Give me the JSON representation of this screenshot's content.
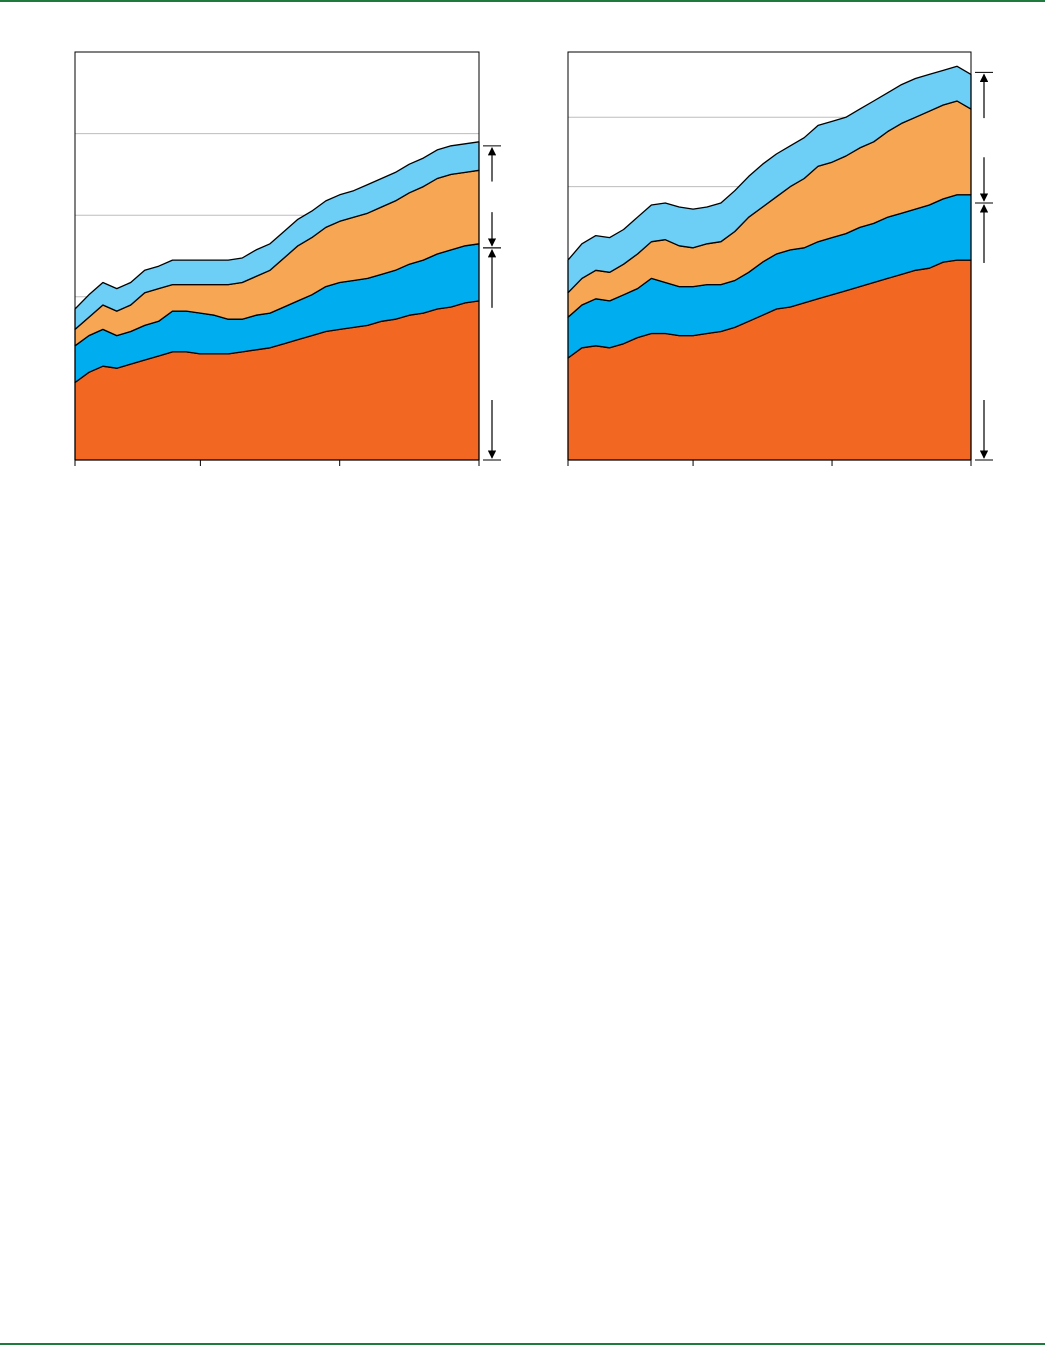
{
  "colors": {
    "rule": "#1f7a3e",
    "frame": "#000000",
    "gridline": "#bdbdbd",
    "layer_1": "#f26722",
    "layer_2": "#00aeef",
    "layer_3": "#f7a654",
    "layer_4": "#6dcff6"
  },
  "chart_data": [
    {
      "type": "area",
      "stacked": true,
      "title": "",
      "xlabel": "",
      "ylabel": "",
      "x": [
        0,
        1,
        2,
        3,
        4,
        5,
        6,
        7,
        8,
        9,
        10,
        11,
        12,
        13,
        14,
        15,
        16,
        17,
        18,
        19,
        20,
        21,
        22,
        23,
        24,
        25,
        26,
        27,
        28,
        29
      ],
      "xlim": [
        0,
        29
      ],
      "xticks": [
        0,
        9,
        19,
        29
      ],
      "ylim": [
        0,
        100
      ],
      "gridlines_y": [
        40,
        60,
        80
      ],
      "series": [
        {
          "color_key": "layer_1",
          "values": [
            19,
            21.5,
            23,
            22.5,
            23.5,
            24.5,
            25.5,
            26.5,
            26.5,
            26,
            26,
            26,
            26.5,
            27,
            27.5,
            28.5,
            29.5,
            30.5,
            31.5,
            32,
            32.5,
            33,
            34,
            34.5,
            35.5,
            36,
            37,
            37.5,
            38.5,
            39
          ]
        },
        {
          "color_key": "layer_2",
          "values": [
            9,
            9,
            9,
            8,
            8,
            8.5,
            8.5,
            10,
            10,
            10,
            9.5,
            8.5,
            8,
            8.5,
            8.5,
            9,
            9.5,
            10,
            11,
            11.5,
            11.5,
            11.5,
            11.5,
            12,
            12.5,
            13,
            13.5,
            14,
            14,
            14
          ]
        },
        {
          "color_key": "layer_3",
          "values": [
            4,
            4.5,
            6,
            6,
            6.5,
            8,
            8,
            6.5,
            6.5,
            7,
            7.5,
            8.5,
            9,
            9.5,
            10.5,
            12,
            13.5,
            14,
            14.5,
            15,
            15.5,
            16,
            16.5,
            17,
            17.5,
            18,
            18.5,
            18.5,
            18,
            18
          ]
        },
        {
          "color_key": "layer_4",
          "values": [
            5,
            5.5,
            5.5,
            5.5,
            5.5,
            5.5,
            5.5,
            6,
            6,
            6,
            6,
            6,
            6,
            6.5,
            6.5,
            6.5,
            6.5,
            6.5,
            6.5,
            6.5,
            6.5,
            7,
            7,
            7,
            7,
            7,
            7,
            7,
            7,
            7
          ]
        }
      ],
      "bracket_upper": {
        "from": 52,
        "to": 77
      },
      "bracket_lower": {
        "from": 0,
        "to": 52
      }
    },
    {
      "type": "area",
      "stacked": true,
      "title": "",
      "xlabel": "",
      "ylabel": "",
      "x": [
        0,
        1,
        2,
        3,
        4,
        5,
        6,
        7,
        8,
        9,
        10,
        11,
        12,
        13,
        14,
        15,
        16,
        17,
        18,
        19,
        20,
        21,
        22,
        23,
        24,
        25,
        26,
        27,
        28,
        29
      ],
      "xlim": [
        0,
        29
      ],
      "xticks": [
        0,
        9,
        19,
        29
      ],
      "ylim": [
        0,
        100
      ],
      "gridlines_y": [
        67,
        84
      ],
      "series": [
        {
          "color_key": "layer_1",
          "values": [
            25,
            27.5,
            28,
            27.5,
            28.5,
            30,
            31,
            31,
            30.5,
            30.5,
            31,
            31.5,
            32.5,
            34,
            35.5,
            37,
            37.5,
            38.5,
            39.5,
            40.5,
            41.5,
            42.5,
            43.5,
            44.5,
            45.5,
            46.5,
            47,
            48.5,
            49,
            49
          ]
        },
        {
          "color_key": "layer_2",
          "values": [
            10,
            10.5,
            11.5,
            11.5,
            12,
            12,
            13.5,
            12.5,
            12,
            12,
            12,
            11.5,
            11.5,
            12,
            13,
            13.5,
            14,
            13.5,
            14,
            14,
            14,
            14.5,
            14.5,
            15,
            15,
            15,
            15.5,
            15.5,
            16,
            16
          ]
        },
        {
          "color_key": "layer_3",
          "values": [
            6,
            6.5,
            7,
            7,
            7.5,
            8.5,
            9,
            10.5,
            10,
            9.5,
            10,
            10.5,
            12,
            13.5,
            13.5,
            14,
            15.5,
            17,
            18.5,
            18.5,
            19,
            19.5,
            20,
            21,
            22,
            22.5,
            23,
            23,
            23,
            21
          ]
        },
        {
          "color_key": "layer_4",
          "values": [
            8,
            8.5,
            8.5,
            8.5,
            8.5,
            9,
            9,
            9,
            9.5,
            9.5,
            9,
            9.5,
            10,
            10,
            10.5,
            10.5,
            10,
            10,
            10,
            10,
            9.5,
            9.5,
            10,
            9.5,
            9.5,
            9.5,
            9,
            8.5,
            8.5,
            8.5
          ]
        }
      ],
      "bracket_upper": {
        "from": 63,
        "to": 95
      },
      "bracket_lower": {
        "from": 0,
        "to": 63
      }
    }
  ]
}
